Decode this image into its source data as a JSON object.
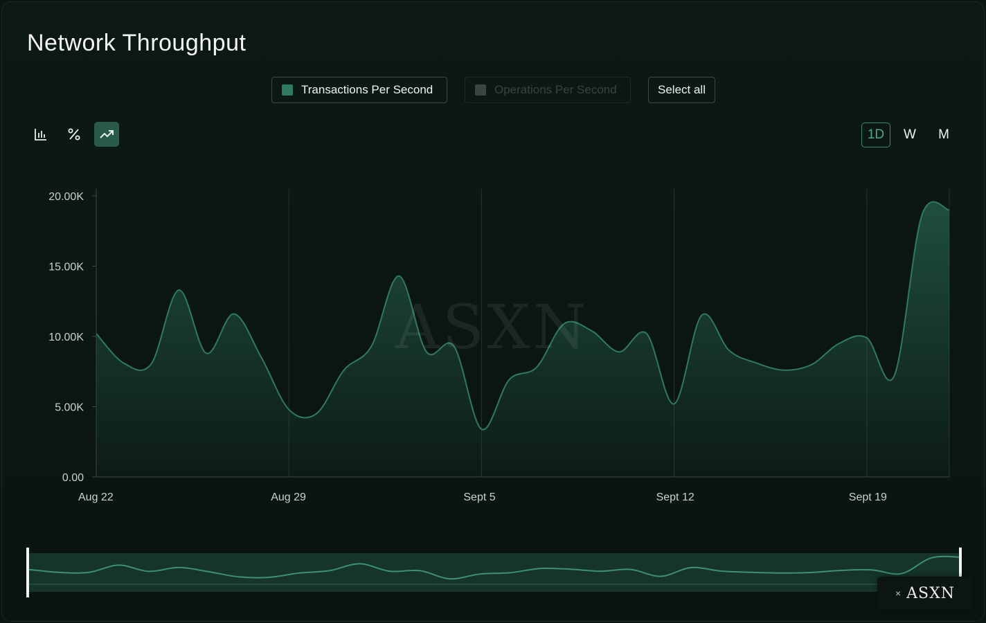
{
  "header": {
    "title": "Network Throughput"
  },
  "legend": {
    "items": [
      {
        "label": "Transactions Per Second",
        "color": "#2f7a63",
        "active": true
      },
      {
        "label": "Operations Per Second",
        "color": "#3a4542",
        "active": false
      }
    ],
    "select_all_label": "Select all"
  },
  "chart_types": [
    {
      "icon": "bar-chart-icon",
      "active": false
    },
    {
      "icon": "percent-icon",
      "active": false
    },
    {
      "icon": "trend-line-icon",
      "active": true
    }
  ],
  "ranges": [
    {
      "label": "1D",
      "active": true
    },
    {
      "label": "W",
      "active": false
    },
    {
      "label": "M",
      "active": false
    }
  ],
  "watermark": "ASXN",
  "badge": {
    "close_glyph": "×",
    "brand": "ASXN"
  },
  "chart_data": {
    "type": "area",
    "title": "Network Throughput",
    "xlabel": "",
    "ylabel": "",
    "series": [
      {
        "name": "Transactions Per Second",
        "color": "#2f7a63",
        "x": [
          "2023-08-22",
          "2023-08-23",
          "2023-08-24",
          "2023-08-25",
          "2023-08-26",
          "2023-08-27",
          "2023-08-28",
          "2023-08-29",
          "2023-08-30",
          "2023-08-31",
          "2023-09-01",
          "2023-09-02",
          "2023-09-03",
          "2023-09-04",
          "2023-09-05",
          "2023-09-06",
          "2023-09-07",
          "2023-09-08",
          "2023-09-09",
          "2023-09-10",
          "2023-09-11",
          "2023-09-12",
          "2023-09-13",
          "2023-09-14",
          "2023-09-15",
          "2023-09-16",
          "2023-09-17",
          "2023-09-18",
          "2023-09-19",
          "2023-09-20",
          "2023-09-21",
          "2023-09-22"
        ],
        "values": [
          10200,
          8100,
          8050,
          13300,
          8800,
          11600,
          8500,
          4800,
          4500,
          7600,
          9300,
          14300,
          8900,
          9300,
          3400,
          6900,
          7800,
          10900,
          10400,
          8900,
          10200,
          5200,
          11500,
          9000,
          8100,
          7600,
          8000,
          9500,
          9900,
          7200,
          18600,
          19000
        ]
      }
    ],
    "x_ticks": [
      "Aug 22",
      "Aug 29",
      "Sept 5",
      "Sept 12",
      "Sept 19"
    ],
    "y_ticks": [
      "0.00",
      "5.00K",
      "10.00K",
      "15.00K",
      "20.00K"
    ],
    "ylim": [
      0,
      20000
    ],
    "grid": "vertical",
    "legend": "top-center"
  }
}
